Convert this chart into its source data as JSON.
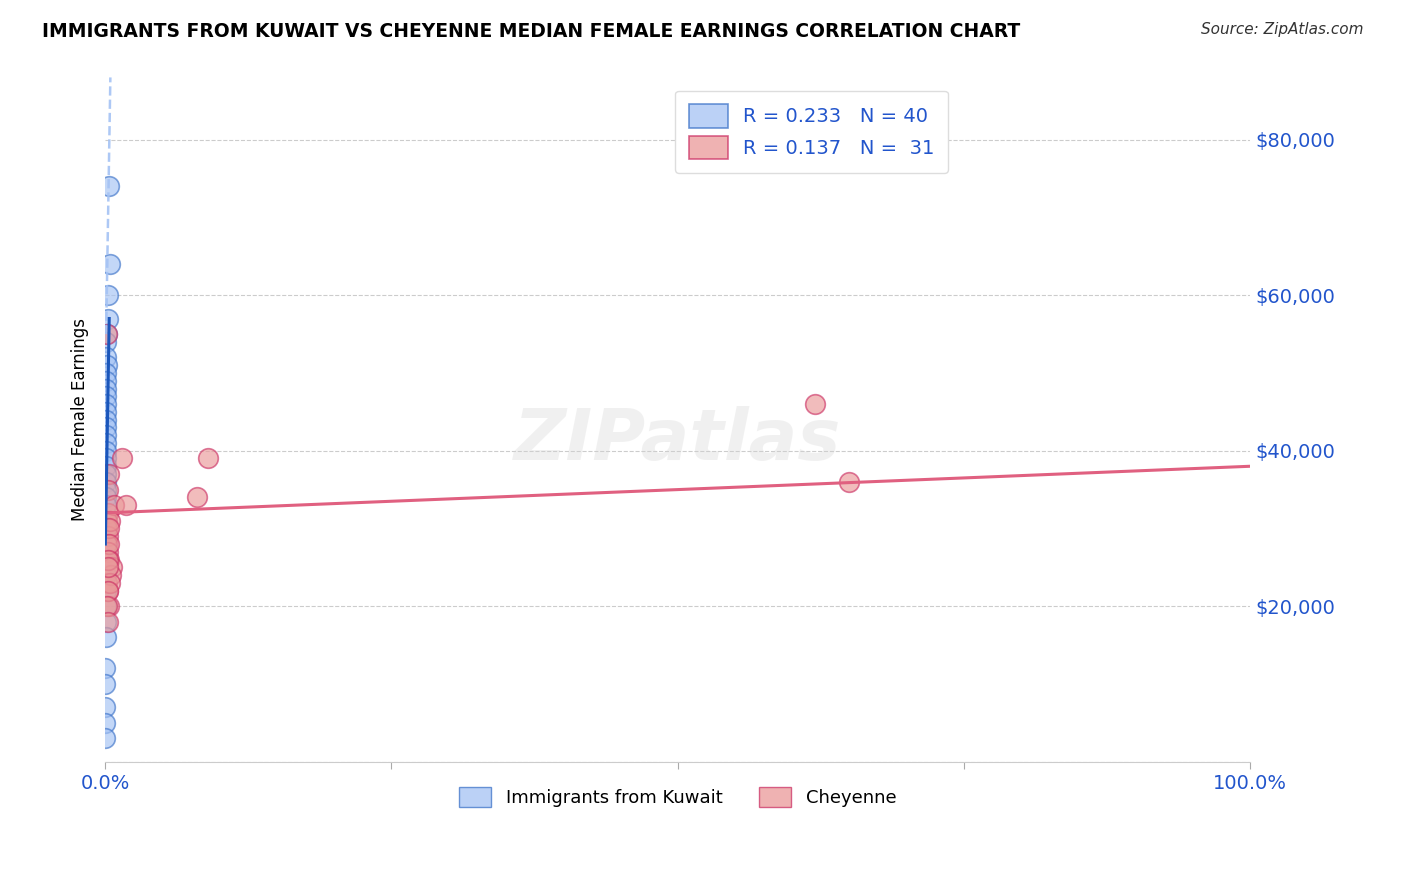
{
  "title": "IMMIGRANTS FROM KUWAIT VS CHEYENNE MEDIAN FEMALE EARNINGS CORRELATION CHART",
  "source": "Source: ZipAtlas.com",
  "ylabel": "Median Female Earnings",
  "xlim": [
    0.0,
    1.0
  ],
  "ylim": [
    0,
    88000
  ],
  "yticks": [
    0,
    20000,
    40000,
    60000,
    80000
  ],
  "legend_blue_r": "0.233",
  "legend_blue_n": "40",
  "legend_pink_r": "0.137",
  "legend_pink_n": "31",
  "legend_label_blue": "Immigrants from Kuwait",
  "legend_label_pink": "Cheyenne",
  "blue_face_color": "#a4c2f4",
  "blue_edge_color": "#3d73c8",
  "pink_face_color": "#ea9999",
  "pink_edge_color": "#cc3366",
  "trend_blue_color": "#1a56bb",
  "trend_pink_color": "#e06080",
  "dashed_blue_color": "#a4c2f4",
  "blue_scatter_x": [
    0.003,
    0.004,
    0.002,
    0.002,
    0.0015,
    0.001,
    0.001,
    0.0015,
    0.001,
    0.001,
    0.001,
    0.001,
    0.001,
    0.0008,
    0.001,
    0.001,
    0.001,
    0.001,
    0.001,
    0.001,
    0.001,
    0.001,
    0.001,
    0.0008,
    0.0008,
    0.0006,
    0.0005,
    0.0005,
    0.0005,
    0.0004,
    0.0004,
    0.0003,
    0.0003,
    0.0003,
    0.0003,
    0.0002,
    0.0002,
    0.0002,
    0.0001,
    0.0001
  ],
  "blue_scatter_y": [
    74000,
    64000,
    60000,
    57000,
    55000,
    54000,
    52000,
    51000,
    50000,
    49000,
    48000,
    47000,
    46000,
    45000,
    44000,
    43000,
    42000,
    41000,
    40000,
    39000,
    38000,
    37000,
    36000,
    35000,
    34000,
    33000,
    31000,
    30000,
    28000,
    26000,
    24000,
    22000,
    20000,
    18000,
    16000,
    12000,
    10000,
    7000,
    5000,
    3000
  ],
  "pink_scatter_x": [
    0.0015,
    0.003,
    0.0025,
    0.002,
    0.0015,
    0.0018,
    0.0022,
    0.0015,
    0.002,
    0.003,
    0.006,
    0.008,
    0.015,
    0.018,
    0.62,
    0.65,
    0.09,
    0.08,
    0.0015,
    0.002,
    0.003,
    0.004,
    0.003,
    0.005,
    0.004,
    0.0035,
    0.0022,
    0.002,
    0.0018,
    0.0025,
    0.002
  ],
  "pink_scatter_y": [
    55000,
    37000,
    35000,
    32000,
    31000,
    30000,
    29000,
    28000,
    27000,
    26000,
    25000,
    33000,
    39000,
    33000,
    46000,
    36000,
    39000,
    34000,
    23000,
    22000,
    20000,
    31000,
    30000,
    24000,
    23000,
    28000,
    26000,
    22000,
    20000,
    18000,
    25000
  ],
  "background_color": "#ffffff",
  "grid_color": "#cccccc"
}
